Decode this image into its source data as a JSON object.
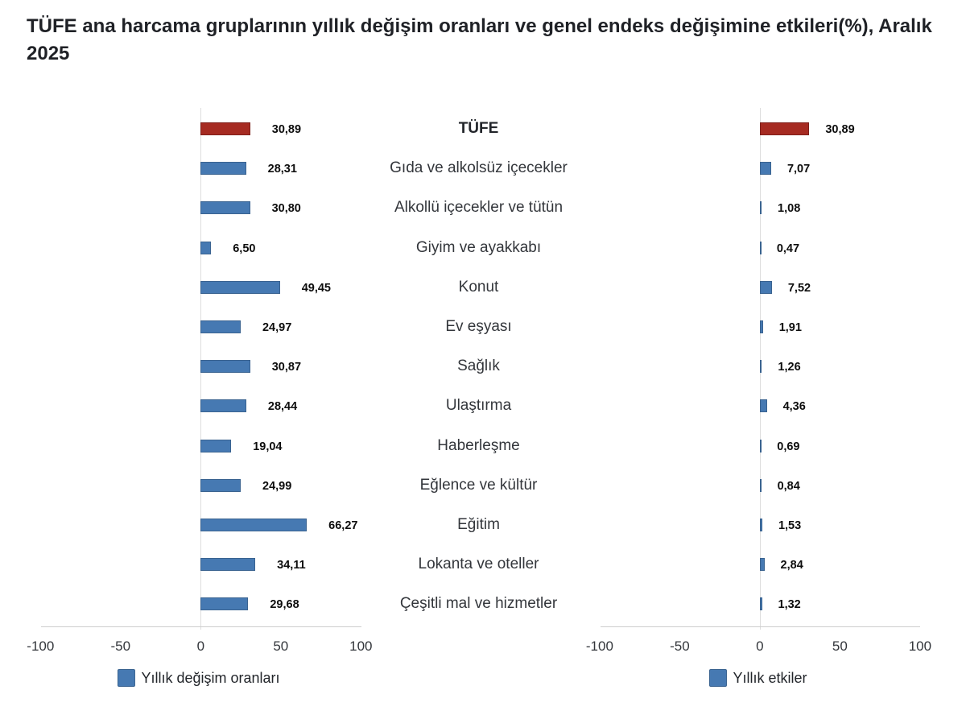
{
  "title": "TÜFE ana harcama gruplarının yıllık değişim oranları ve genel endeks değişimine etkileri(%), Aralık 2025",
  "colors": {
    "bar_blue": "#4679B2",
    "bar_blue_border": "#3A6390",
    "bar_red": "#A62B22",
    "bar_red_border": "#7E1F1A",
    "axis_line": "#cdcdcd",
    "zero_line": "#dddddd",
    "title_text": "#1f2126",
    "label_text": "#33363b",
    "value_text": "#0d0d0d",
    "background": "#ffffff"
  },
  "chart_data": {
    "type": "bar",
    "orientation": "horizontal",
    "title": "TÜFE ana harcama gruplarının yıllık değişim oranları ve genel endeks değişimine etkileri(%), Aralık 2025",
    "categories": [
      "TÜFE",
      "Gıda ve alkolsüz içecekler",
      "Alkollü içecekler ve tütün",
      "Giyim ve ayakkabı",
      "Konut",
      "Ev eşyası",
      "Sağlık",
      "Ulaştırma",
      "Haberleşme",
      "Eğlence ve kültür",
      "Eğitim",
      "Lokanta ve oteller",
      "Çeşitli mal ve hizmetler"
    ],
    "series": [
      {
        "name": "Yıllık değişim oranları",
        "values": [
          30.89,
          28.31,
          30.8,
          6.5,
          49.45,
          24.97,
          30.87,
          28.44,
          19.04,
          24.99,
          66.27,
          34.11,
          29.68
        ],
        "value_labels": [
          "30,89",
          "28,31",
          "30,80",
          "6,50",
          "49,45",
          "24,97",
          "30,87",
          "28,44",
          "19,04",
          "24,99",
          "66,27",
          "34,11",
          "29,68"
        ]
      },
      {
        "name": "Yıllık etkiler",
        "values": [
          30.89,
          7.07,
          1.08,
          0.47,
          7.52,
          1.91,
          1.26,
          4.36,
          0.69,
          0.84,
          1.53,
          2.84,
          1.32
        ],
        "value_labels": [
          "30,89",
          "7,07",
          "1,08",
          "0,47",
          "7,52",
          "1,91",
          "1,26",
          "4,36",
          "0,69",
          "0,84",
          "1,53",
          "2,84",
          "1,32"
        ]
      }
    ],
    "highlight_category": "TÜFE",
    "highlight_index": 0,
    "xlim": [
      -100,
      100
    ],
    "xticks": [
      -100,
      -50,
      0,
      50,
      100
    ],
    "xtick_labels": [
      "-100",
      "-50",
      "0",
      "50",
      "100"
    ],
    "grid": false,
    "legend_position": "bottom"
  },
  "legends": {
    "left": "Yıllık değişim oranları",
    "right": "Yıllık etkiler"
  }
}
